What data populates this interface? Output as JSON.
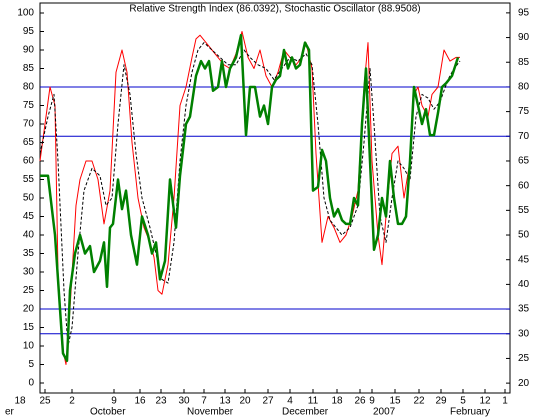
{
  "chart_data": {
    "type": "line",
    "title": "Relative Strength Index (86.0392), Stochastic Oscillator (88.9508)",
    "xlim": [
      0,
      470
    ],
    "xticks": [
      {
        "value": -20,
        "label": "18"
      },
      {
        "value": 5,
        "label": "25"
      },
      {
        "value": 32,
        "label": "2"
      },
      {
        "value": 74,
        "label": "9"
      },
      {
        "value": 100,
        "label": "16"
      },
      {
        "value": 121,
        "label": "23"
      },
      {
        "value": 144,
        "label": "30"
      },
      {
        "value": 164,
        "label": "7"
      },
      {
        "value": 185,
        "label": "13"
      },
      {
        "value": 205,
        "label": "20"
      },
      {
        "value": 228,
        "label": "27"
      },
      {
        "value": 250,
        "label": "4"
      },
      {
        "value": 273,
        "label": "11"
      },
      {
        "value": 297,
        "label": "18"
      },
      {
        "value": 320,
        "label": "26"
      },
      {
        "value": 332,
        "label": "9"
      },
      {
        "value": 355,
        "label": "15"
      },
      {
        "value": 379,
        "label": "22"
      },
      {
        "value": 401,
        "label": "29"
      },
      {
        "value": 423,
        "label": "5"
      },
      {
        "value": 445,
        "label": "12"
      },
      {
        "value": 465,
        "label": "1"
      }
    ],
    "month_labels": [
      {
        "value": -35,
        "label": "er"
      },
      {
        "value": 50,
        "label": "October"
      },
      {
        "value": 147,
        "label": "November"
      },
      {
        "value": 242,
        "label": "December"
      },
      {
        "value": 333,
        "label": "2007"
      },
      {
        "value": 410,
        "label": "February"
      }
    ],
    "ylim": [
      -2.7,
      102.7
    ],
    "yticks": [
      0,
      5,
      10,
      15,
      20,
      25,
      30,
      35,
      40,
      45,
      50,
      55,
      60,
      65,
      70,
      75,
      80,
      85,
      90,
      95,
      100
    ],
    "y2lim": [
      18,
      97
    ],
    "y2ticks": [
      20,
      25,
      30,
      35,
      40,
      45,
      50,
      55,
      60,
      65,
      70,
      75,
      80,
      85,
      90,
      95
    ],
    "hlines": [
      {
        "value": 80,
        "axis": "y"
      },
      {
        "value": 70,
        "axis": "y2"
      },
      {
        "value": 20,
        "axis": "y"
      },
      {
        "value": 30,
        "axis": "y2"
      }
    ],
    "hline_color": "#0000cc",
    "series": [
      {
        "color": "#ff0000",
        "width": 1,
        "dashed": false,
        "x": [
          0,
          5,
          10,
          15,
          18,
          22,
          26,
          30,
          36,
          40,
          46,
          52,
          58,
          64,
          70,
          76,
          82,
          87,
          92,
          98,
          104,
          110,
          114,
          118,
          122,
          128,
          134,
          140,
          146,
          152,
          156,
          160,
          166,
          172,
          178,
          184,
          190,
          196,
          202,
          208,
          214,
          220,
          226,
          232,
          238,
          244,
          250,
          256,
          262,
          266,
          272,
          276,
          282,
          288,
          294,
          300,
          306,
          312,
          318,
          324,
          328,
          332,
          338,
          342,
          346,
          352,
          358,
          364,
          370,
          374,
          378,
          382,
          388,
          392,
          398,
          404,
          410,
          416,
          420
        ],
        "values": [
          60,
          70,
          80,
          75,
          30,
          10,
          5,
          20,
          48,
          55,
          60,
          60,
          55,
          43,
          52,
          84,
          90,
          84,
          65,
          50,
          42,
          38,
          34,
          25,
          24,
          32,
          50,
          75,
          80,
          88,
          93,
          94,
          92,
          90,
          88,
          86,
          85,
          89,
          95,
          88,
          85,
          90,
          83,
          80,
          84,
          90,
          88,
          86,
          88,
          92,
          85,
          62,
          38,
          45,
          42,
          38,
          40,
          45,
          52,
          80,
          92,
          60,
          40,
          32,
          45,
          62,
          64,
          50,
          60,
          78,
          80,
          75,
          72,
          78,
          80,
          90,
          87,
          88,
          88
        ]
      },
      {
        "color": "#000000",
        "width": 1,
        "dashed": true,
        "x": [
          0,
          8,
          14,
          18,
          24,
          28,
          32,
          38,
          44,
          52,
          60,
          66,
          72,
          78,
          84,
          90,
          96,
          102,
          110,
          116,
          122,
          128,
          134,
          140,
          146,
          152,
          158,
          164,
          172,
          180,
          188,
          196,
          204,
          210,
          218,
          226,
          234,
          242,
          250,
          258,
          266,
          272,
          278,
          284,
          290,
          296,
          302,
          310,
          318,
          324,
          330,
          334,
          340,
          346,
          352,
          358,
          364,
          370,
          376,
          382,
          388,
          394,
          400,
          408,
          414,
          420
        ],
        "values": [
          62,
          72,
          78,
          60,
          25,
          10,
          15,
          35,
          52,
          58,
          56,
          48,
          50,
          70,
          86,
          78,
          62,
          50,
          42,
          35,
          28,
          27,
          38,
          60,
          75,
          84,
          90,
          92,
          90,
          88,
          86,
          86,
          90,
          88,
          86,
          85,
          82,
          85,
          88,
          87,
          89,
          86,
          70,
          50,
          44,
          42,
          40,
          42,
          48,
          65,
          85,
          70,
          45,
          38,
          50,
          60,
          58,
          55,
          72,
          78,
          77,
          74,
          76,
          82,
          85,
          87
        ]
      },
      {
        "color": "#008000",
        "width": 2.5,
        "dashed": false,
        "x": [
          0,
          8,
          15,
          20,
          23,
          27,
          30,
          35,
          40,
          45,
          50,
          54,
          60,
          64,
          67,
          70,
          73,
          78,
          82,
          86,
          91,
          97,
          102,
          108,
          112,
          116,
          120,
          125,
          130,
          136,
          140,
          146,
          150,
          156,
          161,
          165,
          169,
          173,
          178,
          182,
          186,
          190,
          196,
          201,
          206,
          210,
          215,
          220,
          224,
          228,
          232,
          236,
          240,
          244,
          248,
          252,
          256,
          260,
          265,
          269,
          273,
          278,
          282,
          286,
          290,
          294,
          298,
          302,
          306,
          310,
          314,
          318,
          322,
          326,
          330,
          334,
          338,
          342,
          346,
          350,
          354,
          358,
          362,
          366,
          370,
          374,
          378,
          382,
          386,
          390,
          394,
          398,
          402,
          406,
          412,
          418
        ],
        "values": [
          56,
          56,
          40,
          20,
          8,
          6,
          25,
          35,
          40,
          35,
          37,
          30,
          33,
          38,
          26,
          42,
          43,
          55,
          47,
          52,
          40,
          32,
          45,
          40,
          35,
          38,
          28,
          33,
          55,
          42,
          56,
          70,
          72,
          83,
          87,
          85,
          87,
          79,
          80,
          87,
          80,
          85,
          88,
          94,
          67,
          80,
          80,
          72,
          75,
          70,
          80,
          82,
          83,
          90,
          85,
          88,
          85,
          86,
          92,
          90,
          52,
          53,
          63,
          60,
          50,
          45,
          47,
          44,
          43,
          43,
          50,
          48,
          70,
          85,
          60,
          36,
          40,
          50,
          45,
          60,
          50,
          43,
          43,
          45,
          60,
          80,
          75,
          70,
          74,
          67,
          67,
          73,
          80,
          81,
          83,
          88
        ]
      }
    ]
  }
}
